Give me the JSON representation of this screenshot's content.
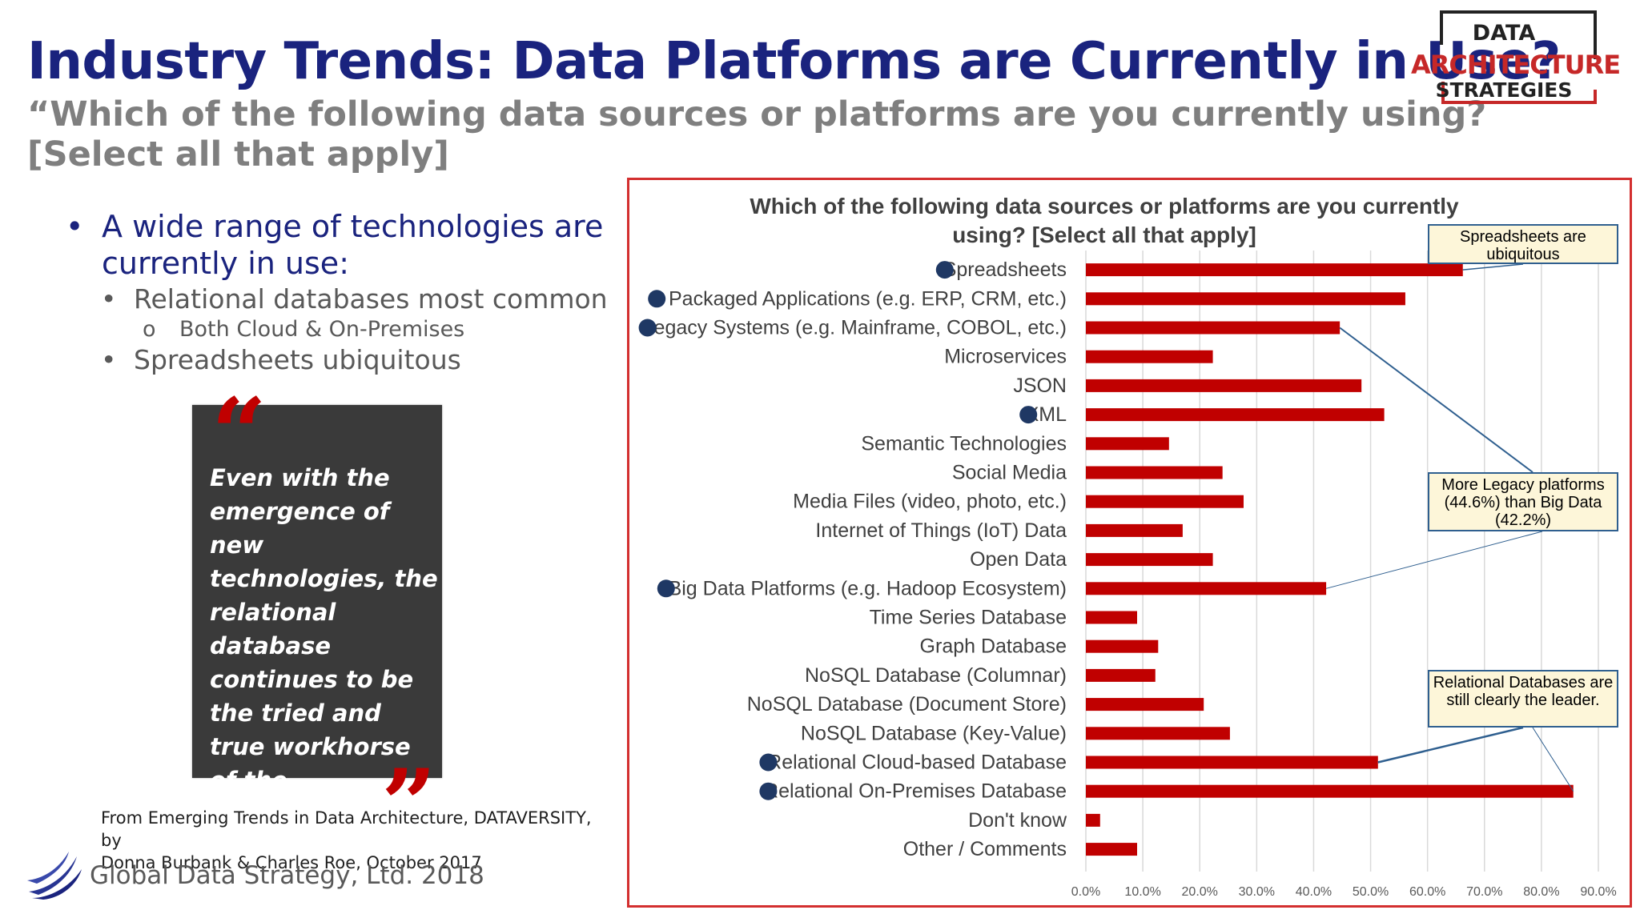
{
  "header": {
    "title": "Industry Trends: Data Platforms are Currently in Use?",
    "subtitle_line1": "“Which of the following data sources or platforms are you currently using?",
    "subtitle_line2": "[Select all that apply]"
  },
  "logo": {
    "line1": "DATA",
    "line2": "ARCHITECTURE",
    "line3": "STRATEGIES",
    "brand_color": "#c62828"
  },
  "bullets": {
    "main": "A wide range of technologies are currently in use:",
    "sub1": "Relational databases most common",
    "sub1_1": "Both Cloud & On-Premises",
    "sub2": "Spreadsheets ubiquitous",
    "bullet_char": "•",
    "sub_bullet_char": "•",
    "circle_char": "o"
  },
  "quote": {
    "text": "Even with the emergence of new technologies, the relational database continues to be the tried and true workhorse of the organization.",
    "open_mark": "“",
    "close_mark": "”"
  },
  "source": {
    "line1": "From Emerging Trends in Data Architecture, DATAVERSITY, by",
    "line2": "Donna Burbank & Charles Roe, October 2017"
  },
  "footer": {
    "text": "Global Data Strategy, Ltd. 2018"
  },
  "callouts": {
    "spreadsheets": "Spreadsheets are ubiquitous",
    "legacy": "More Legacy platforms (44.6%) than Big Data (42.2%)",
    "relational": "Relational Databases are still clearly the leader."
  },
  "colors": {
    "title": "#1a237e",
    "bar": "#c00000",
    "marker": "#1f3864",
    "frame": "#d32f2f"
  },
  "chart_data": {
    "type": "bar",
    "orientation": "horizontal",
    "title": "Which of the following data sources or platforms are you currently using? [Select all that apply]",
    "title_line1": "Which of the following data sources or platforms are you currently",
    "title_line2": "using? [Select all that apply]",
    "categories": [
      "Spreadsheets",
      "Packaged Applications (e.g. ERP, CRM, etc.)",
      "Legacy Systems (e.g. Mainframe, COBOL, etc.)",
      "Microservices",
      "JSON",
      "XML",
      "Semantic Technologies",
      "Social Media",
      "Media Files (video, photo, etc.)",
      "Internet of Things (IoT) Data",
      "Open Data",
      "Big Data Platforms (e.g. Hadoop Ecosystem)",
      "Time Series Database",
      "Graph Database",
      "NoSQL Database (Columnar)",
      "NoSQL Database (Document Store)",
      "NoSQL Database (Key-Value)",
      "Relational Cloud-based Database",
      "Relational On-Premises Database",
      "Don't know",
      "Other / Comments"
    ],
    "values": [
      66.2,
      56.1,
      44.6,
      22.3,
      48.4,
      52.4,
      14.6,
      24.0,
      27.7,
      17.0,
      22.3,
      42.2,
      9.0,
      12.7,
      12.2,
      20.7,
      25.3,
      51.3,
      85.6,
      2.5,
      9.0
    ],
    "highlighted": [
      true,
      true,
      true,
      false,
      false,
      true,
      false,
      false,
      false,
      false,
      false,
      true,
      false,
      false,
      false,
      false,
      false,
      true,
      true,
      false,
      false
    ],
    "xlim": [
      0,
      90
    ],
    "xticks": [
      "0.0%",
      "10.0%",
      "20.0%",
      "30.0%",
      "40.0%",
      "50.0%",
      "60.0%",
      "70.0%",
      "80.0%",
      "90.0%"
    ],
    "grid": true,
    "unit": "%"
  }
}
